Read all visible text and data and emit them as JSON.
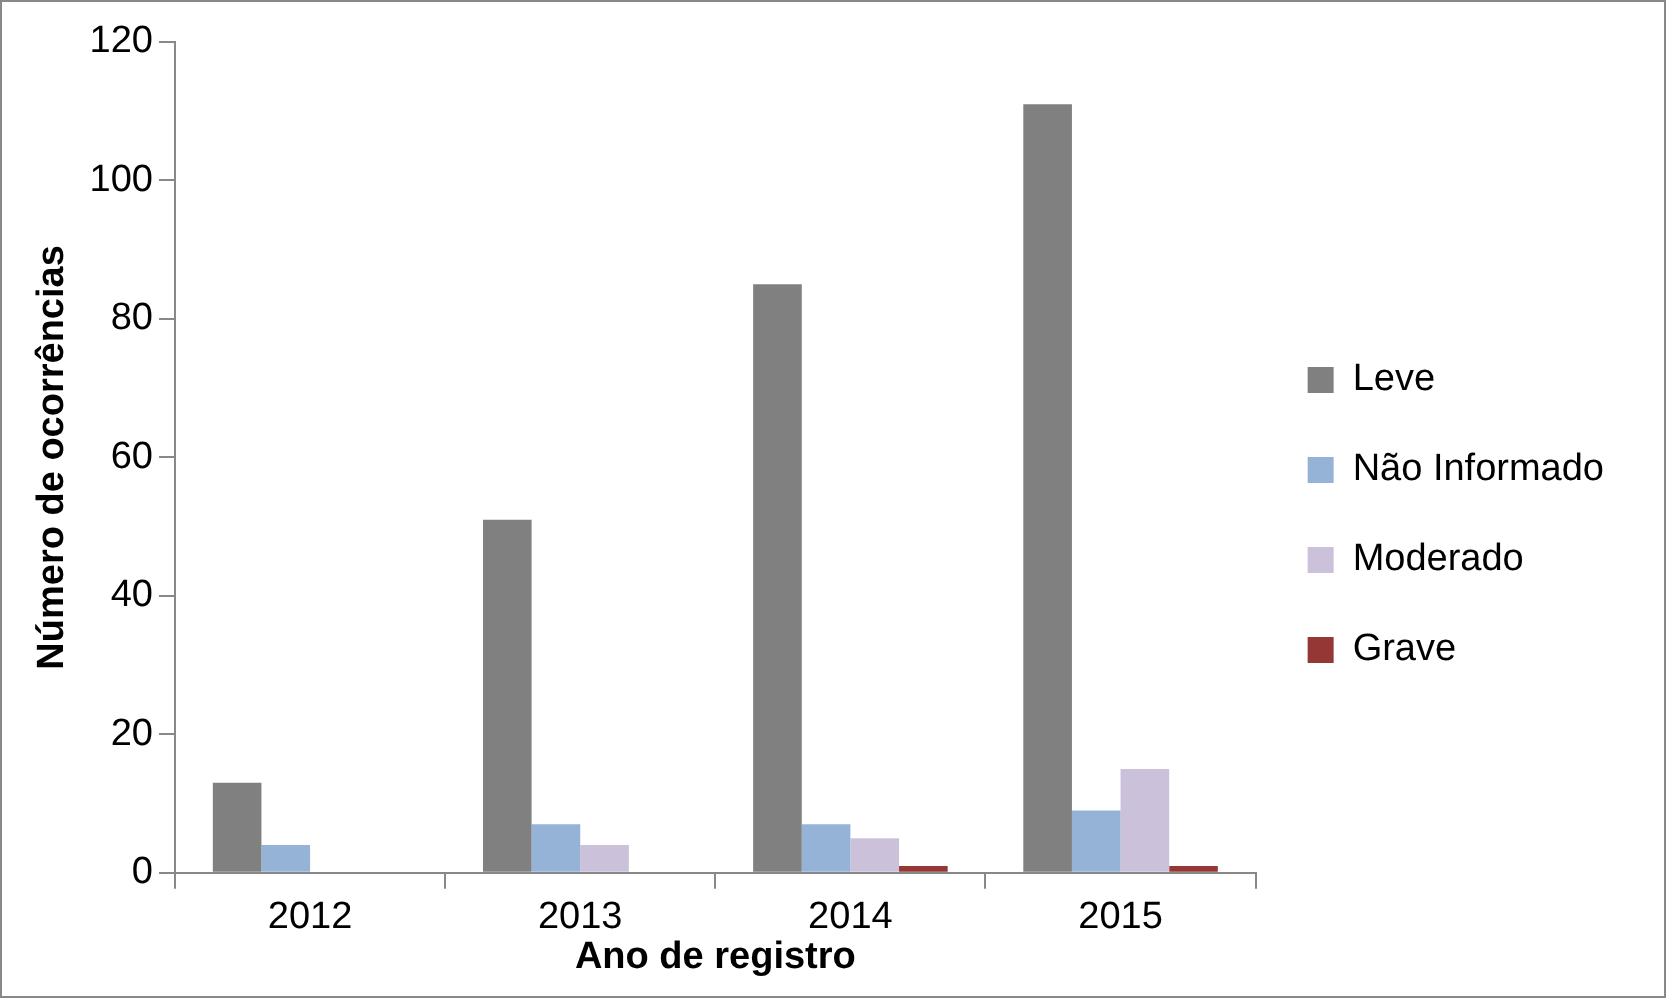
{
  "chart_data": {
    "type": "bar",
    "xlabel": "Ano de registro",
    "ylabel": "Número de ocorrências",
    "categories": [
      "2012",
      "2013",
      "2014",
      "2015"
    ],
    "series": [
      {
        "name": "Leve",
        "color": "#808080",
        "values": [
          13,
          51,
          85,
          111
        ]
      },
      {
        "name": "Não Informado",
        "color": "#95b3d7",
        "values": [
          4,
          7,
          7,
          9
        ]
      },
      {
        "name": "Moderado",
        "color": "#ccc1da",
        "values": [
          0,
          4,
          5,
          15
        ]
      },
      {
        "name": "Grave",
        "color": "#953735",
        "values": [
          0,
          0,
          1,
          1
        ]
      }
    ],
    "ylim": [
      0,
      120
    ],
    "yticks": [
      0,
      20,
      40,
      60,
      80,
      100,
      120
    ],
    "grid": false,
    "legend": "right"
  }
}
